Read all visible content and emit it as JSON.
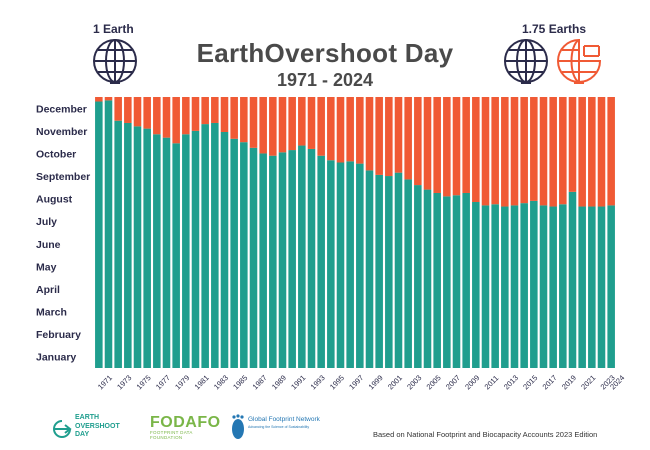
{
  "header": {
    "title": "EarthOvershoot Day",
    "subtitle": "1971 - 2024",
    "left_label": "1 Earth",
    "right_label": "1.75 Earths"
  },
  "footer": {
    "note": "Based on National Footprint and Biocapacity Accounts 2023 Edition",
    "logo_eod_lines": [
      "EARTH",
      "OVERSHOOT",
      "DAY"
    ],
    "logo_fodafo": "FODAFO",
    "logo_fodafo_sub": "FOOTPRINT DATA FOUNDATION",
    "logo_gfn_name": "Global Footprint Network",
    "logo_gfn_sub": "Advancing the Science of Sustainability"
  },
  "colors": {
    "teal": "#1f9e8e",
    "orange": "#f05a35",
    "navy": "#2b2b4a"
  },
  "chart_data": {
    "type": "bar",
    "stacked": true,
    "title": "EarthOvershoot Day",
    "subtitle": "1971 - 2024",
    "xlabel": "",
    "ylabel": "",
    "y_tick_labels": [
      "January",
      "February",
      "March",
      "April",
      "May",
      "June",
      "July",
      "August",
      "September",
      "October",
      "November",
      "December"
    ],
    "ylim_months": [
      0,
      12
    ],
    "x_tick_labels": [
      "1971",
      "1973",
      "1975",
      "1977",
      "1979",
      "1981",
      "1983",
      "1985",
      "1987",
      "1989",
      "1991",
      "1993",
      "1995",
      "1997",
      "1999",
      "2001",
      "2003",
      "2005",
      "2007",
      "2009",
      "2011",
      "2013",
      "2015",
      "2017",
      "2019",
      "2021",
      "2023",
      "2024"
    ],
    "x": [
      1971,
      1972,
      1973,
      1974,
      1975,
      1976,
      1977,
      1978,
      1979,
      1980,
      1981,
      1982,
      1983,
      1984,
      1985,
      1986,
      1987,
      1988,
      1989,
      1990,
      1991,
      1992,
      1993,
      1994,
      1995,
      1996,
      1997,
      1998,
      1999,
      2000,
      2001,
      2002,
      2003,
      2004,
      2005,
      2006,
      2007,
      2008,
      2009,
      2010,
      2011,
      2012,
      2013,
      2014,
      2015,
      2016,
      2017,
      2018,
      2019,
      2020,
      2021,
      2022,
      2023,
      2024
    ],
    "series": [
      {
        "values": [
          11.8,
          11.85,
          10.95,
          10.85,
          10.7,
          10.6,
          10.35,
          10.2,
          9.95,
          10.35,
          10.5,
          10.8,
          10.85,
          10.45,
          10.15,
          10.0,
          9.75,
          9.5,
          9.4,
          9.55,
          9.65,
          9.85,
          9.7,
          9.4,
          9.2,
          9.1,
          9.15,
          9.05,
          8.75,
          8.55,
          8.5,
          8.65,
          8.35,
          8.1,
          7.9,
          7.75,
          7.6,
          7.65,
          7.75,
          7.35,
          7.2,
          7.25,
          7.15,
          7.2,
          7.3,
          7.4,
          7.2,
          7.15,
          7.25,
          7.8,
          7.15,
          7.15,
          7.15,
          7.2
        ],
        "color": "#1f9e8e"
      },
      {
        "values": [
          0.2,
          0.15,
          1.05,
          1.15,
          1.3,
          1.4,
          1.65,
          1.8,
          2.05,
          1.65,
          1.5,
          1.2,
          1.15,
          1.55,
          1.85,
          2.0,
          2.25,
          2.5,
          2.6,
          2.45,
          2.35,
          2.15,
          2.3,
          2.6,
          2.8,
          2.9,
          2.85,
          2.95,
          3.25,
          3.45,
          3.5,
          3.35,
          3.65,
          3.9,
          4.1,
          4.25,
          4.4,
          4.35,
          4.25,
          4.65,
          4.8,
          4.75,
          4.85,
          4.8,
          4.7,
          4.6,
          4.8,
          4.85,
          4.75,
          4.2,
          4.85,
          4.85,
          4.85,
          4.8
        ],
        "color": "#f05a35"
      }
    ]
  }
}
